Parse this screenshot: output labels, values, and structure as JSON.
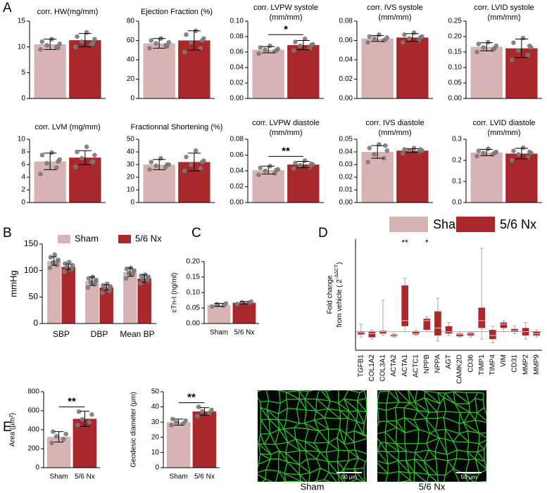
{
  "panel_labels": [
    "A",
    "B",
    "C",
    "D",
    "E"
  ],
  "legend": [
    {
      "name": "Sham",
      "color": "#d7b3b3"
    },
    {
      "name": "5/6 Nx",
      "color": "#a8282b"
    }
  ],
  "images": [
    {
      "caption": "Sham",
      "scale_bar": "50 µm"
    },
    {
      "caption": "5/6 Nx",
      "scale_bar": "50 µm"
    }
  ],
  "chart_data": [
    {
      "type": "bar",
      "title": [
        "corr. HW(mg/mm)"
      ],
      "values": [
        10.5,
        11.3
      ],
      "errors": [
        1.0,
        1.3
      ],
      "points": [
        [
          9.5,
          10,
          10.3,
          10.6,
          11,
          11.5,
          9.8
        ],
        [
          10,
          10.5,
          11,
          11.5,
          12,
          12.8,
          10.8
        ]
      ],
      "ylim": [
        0,
        15
      ],
      "yticks": [
        0,
        5,
        10,
        15
      ]
    },
    {
      "type": "bar",
      "title": [
        "Ejection Fraction (%)"
      ],
      "values": [
        57,
        60
      ],
      "errors": [
        5,
        10
      ],
      "points": [
        [
          52,
          55,
          57,
          58,
          60,
          62,
          54
        ],
        [
          48,
          52,
          58,
          62,
          66,
          70,
          60
        ]
      ],
      "ylim": [
        0,
        80
      ],
      "yticks": [
        0,
        20,
        40,
        60,
        80
      ]
    },
    {
      "type": "bar",
      "title": [
        "corr. LVPW systole",
        "(mm/mm)"
      ],
      "values": [
        0.063,
        0.069
      ],
      "errors": [
        0.004,
        0.006
      ],
      "points": [
        [
          0.058,
          0.061,
          0.063,
          0.064,
          0.066,
          0.068,
          0.062
        ],
        [
          0.062,
          0.065,
          0.068,
          0.07,
          0.073,
          0.077,
          0.069
        ]
      ],
      "annotation": "*",
      "ylim": [
        0,
        0.1
      ],
      "yticks": [
        {
          "value": 0,
          "label": "0.00"
        },
        {
          "value": 0.02,
          "label": "0.02"
        },
        {
          "value": 0.04,
          "label": "0.04"
        },
        {
          "value": 0.06,
          "label": "0.06"
        },
        {
          "value": 0.08,
          "label": "0.08"
        },
        {
          "value": 0.1,
          "label": "0.10"
        }
      ]
    },
    {
      "type": "bar",
      "title": [
        "corr. IVS systole",
        "(mm/mm)"
      ],
      "values": [
        0.062,
        0.063
      ],
      "errors": [
        0.003,
        0.004
      ],
      "points": [
        [
          0.058,
          0.06,
          0.062,
          0.063,
          0.064,
          0.066,
          0.061
        ],
        [
          0.058,
          0.06,
          0.062,
          0.064,
          0.066,
          0.068,
          0.063
        ]
      ],
      "ylim": [
        0,
        0.08
      ],
      "yticks": [
        {
          "value": 0,
          "label": "0.00"
        },
        {
          "value": 0.02,
          "label": "0.02"
        },
        {
          "value": 0.04,
          "label": "0.04"
        },
        {
          "value": 0.06,
          "label": "0.06"
        },
        {
          "value": 0.08,
          "label": "0.08"
        }
      ]
    },
    {
      "type": "bar",
      "title": [
        "corr. LVID systole",
        "(mm/mm)"
      ],
      "values": [
        0.167,
        0.162
      ],
      "errors": [
        0.013,
        0.03
      ],
      "points": [
        [
          0.15,
          0.158,
          0.165,
          0.17,
          0.176,
          0.182,
          0.162
        ],
        [
          0.125,
          0.14,
          0.155,
          0.165,
          0.18,
          0.195,
          0.17
        ]
      ],
      "ylim": [
        0,
        0.25
      ],
      "yticks": [
        {
          "value": 0,
          "label": "0.00"
        },
        {
          "value": 0.05,
          "label": "0.05"
        },
        {
          "value": 0.1,
          "label": "0.10"
        },
        {
          "value": 0.15,
          "label": "0.15"
        },
        {
          "value": 0.2,
          "label": "0.20"
        },
        {
          "value": 0.25,
          "label": "0.25"
        }
      ]
    },
    {
      "type": "bar",
      "title": [
        "corr. LVM (mg/mm)"
      ],
      "values": [
        6.5,
        7.1
      ],
      "errors": [
        1.3,
        1.1
      ],
      "points": [
        [
          4.5,
          5.5,
          6.2,
          6.8,
          7.5,
          7.9,
          6.5
        ],
        [
          5.6,
          6.3,
          7.0,
          7.5,
          8.0,
          8.8,
          6.5
        ]
      ],
      "ylim": [
        0,
        10
      ],
      "yticks": [
        0,
        2,
        4,
        6,
        8,
        10
      ]
    },
    {
      "type": "bar",
      "title": [
        "Fractionnal Shortening (%)"
      ],
      "values": [
        30,
        32
      ],
      "errors": [
        4,
        7
      ],
      "points": [
        [
          26,
          28,
          29,
          30,
          32,
          35,
          30
        ],
        [
          25,
          27,
          30,
          33,
          36,
          41,
          32
        ]
      ],
      "ylim": [
        0,
        50
      ],
      "yticks": [
        0,
        10,
        20,
        30,
        40,
        50
      ]
    },
    {
      "type": "bar",
      "title": [
        "corr. LVPW diastole",
        "(mm/mm)"
      ],
      "values": [
        0.041,
        0.048
      ],
      "errors": [
        0.005,
        0.004
      ],
      "points": [
        [
          0.035,
          0.037,
          0.04,
          0.042,
          0.044,
          0.046,
          0.041
        ],
        [
          0.043,
          0.045,
          0.047,
          0.048,
          0.05,
          0.053,
          0.049
        ]
      ],
      "annotation": "**",
      "ylim": [
        0,
        0.08
      ],
      "yticks": [
        {
          "value": 0,
          "label": "0.00"
        },
        {
          "value": 0.02,
          "label": "0.02"
        },
        {
          "value": 0.04,
          "label": "0.04"
        },
        {
          "value": 0.06,
          "label": "0.06"
        },
        {
          "value": 0.08,
          "label": "0.08"
        }
      ]
    },
    {
      "type": "bar",
      "title": [
        "corr. IVS diastole",
        "(mm/mm)"
      ],
      "values": [
        0.04,
        0.041
      ],
      "errors": [
        0.005,
        0.0015
      ],
      "points": [
        [
          0.032,
          0.035,
          0.038,
          0.041,
          0.043,
          0.046,
          0.045
        ],
        [
          0.039,
          0.04,
          0.041,
          0.041,
          0.042,
          0.043,
          0.042
        ]
      ],
      "ylim": [
        0,
        0.05
      ],
      "yticks": [
        {
          "value": 0,
          "label": "0.00"
        },
        {
          "value": 0.01,
          "label": "0.01"
        },
        {
          "value": 0.02,
          "label": "0.02"
        },
        {
          "value": 0.03,
          "label": "0.03"
        },
        {
          "value": 0.04,
          "label": "0.04"
        },
        {
          "value": 0.05,
          "label": "0.05"
        }
      ]
    },
    {
      "type": "bar",
      "title": [
        "corr. LVID diastole",
        "(mm/mm)"
      ],
      "values": [
        0.237,
        0.232
      ],
      "errors": [
        0.015,
        0.025
      ],
      "points": [
        [
          0.22,
          0.228,
          0.235,
          0.24,
          0.245,
          0.255,
          0.235
        ],
        [
          0.2,
          0.215,
          0.228,
          0.235,
          0.245,
          0.26,
          0.24
        ]
      ],
      "ylim": [
        0,
        0.3
      ],
      "yticks": [
        {
          "value": 0,
          "label": "0.0"
        },
        {
          "value": 0.1,
          "label": "0.1"
        },
        {
          "value": 0.2,
          "label": "0.2"
        },
        {
          "value": 0.3,
          "label": "0.3"
        }
      ]
    },
    {
      "type": "bar",
      "ylabel": "mmHg",
      "categories": [
        "SBP",
        "DBP",
        "Mean BP"
      ],
      "series": [
        {
          "name": "Sham",
          "color": "#d7b3b3",
          "values": [
            118,
            80,
            97
          ],
          "errors": [
            8,
            8,
            8
          ],
          "points": [
            [
              105,
              110,
              115,
              120,
              125,
              130,
              118
            ],
            [
              68,
              74,
              78,
              82,
              85,
              88,
              80
            ],
            [
              85,
              92,
              95,
              100,
              103,
              105,
              98
            ]
          ]
        },
        {
          "name": "5/6 Nx",
          "color": "#a8282b",
          "values": [
            107,
            68,
            85
          ],
          "errors": [
            5,
            5,
            7
          ],
          "points": [
            [
              98,
              102,
              106,
              110,
              113,
              116,
              105
            ],
            [
              58,
              62,
              66,
              70,
              72,
              75,
              68
            ],
            [
              76,
              80,
              84,
              88,
              90,
              92,
              86
            ]
          ]
        }
      ],
      "ylim": [
        0,
        150
      ],
      "yticks": [
        0,
        50,
        100,
        150
      ]
    },
    {
      "type": "bar",
      "ylabel": "cTn-I (ng/ml)",
      "categories": [
        "Sham",
        "5/6 Nx"
      ],
      "values": [
        0.06,
        0.067
      ],
      "errors": [
        0.005,
        0.004
      ],
      "points": [
        [
          0.055,
          0.058,
          0.062,
          0.065
        ],
        [
          0.063,
          0.066,
          0.068,
          0.071
        ]
      ],
      "ylim": [
        0,
        0.2
      ],
      "yticks": [
        {
          "value": 0,
          "label": "0.00"
        },
        {
          "value": 0.05,
          "label": "0.05"
        },
        {
          "value": 0.1,
          "label": "0.10"
        },
        {
          "value": 0.15,
          "label": "0.15"
        },
        {
          "value": 0.2,
          "label": "0.20"
        }
      ]
    },
    {
      "type": "box",
      "ylabel": [
        "Fold change",
        [
          "from vehicle ( 2",
          "-ΔΔCT",
          ")"
        ]
      ],
      "color": "#a8282b",
      "refline": 1,
      "categories": [
        "TGFB1",
        "COL1A2",
        "COL3A1",
        "ACTA2",
        "ACTA1",
        "ACTC1",
        "NPPB",
        "NPPA",
        "AGT",
        "CAMK2D",
        "CD36",
        "TIMP1",
        "TIMP4",
        "VIM",
        "CD31",
        "MMP2",
        "MMP9"
      ],
      "boxes": [
        [
          0.7,
          0.85,
          0.95,
          1.0,
          1.4
        ],
        [
          0.6,
          0.7,
          0.9,
          1.0,
          1.1
        ],
        [
          0.8,
          0.9,
          1.0,
          1.05,
          2.7
        ],
        [
          0.7,
          0.75,
          0.8,
          0.85,
          0.9
        ],
        [
          1.0,
          1.3,
          1.6,
          3.5,
          3.9
        ],
        [
          0.8,
          0.85,
          0.9,
          1.0,
          1.1
        ],
        [
          1.0,
          1.1,
          1.6,
          1.7,
          1.8
        ],
        [
          0.5,
          0.8,
          1.2,
          2.1,
          2.8
        ],
        [
          0.8,
          0.9,
          1.0,
          1.3,
          1.5
        ],
        [
          0.7,
          0.75,
          0.85,
          0.9,
          1.0
        ],
        [
          0.7,
          0.8,
          0.9,
          0.95,
          1.0
        ],
        [
          0.6,
          1.2,
          1.6,
          2.3,
          5.5
        ],
        [
          0.4,
          0.6,
          0.8,
          1.1,
          1.3
        ],
        [
          1.0,
          1.2,
          1.4,
          1.5,
          1.6
        ],
        [
          0.9,
          1.0,
          1.05,
          1.15,
          1.3
        ],
        [
          0.6,
          0.8,
          1.0,
          1.2,
          1.5
        ],
        [
          0.7,
          0.8,
          0.9,
          1.0,
          1.1
        ]
      ],
      "annotations": [
        {
          "category": "ACTA1",
          "text": "**"
        },
        {
          "category": "NPPB",
          "text": "*"
        }
      ],
      "ylim": [
        0,
        6
      ]
    },
    {
      "type": "bar",
      "ylabel": "Area (µm²)",
      "categories": [
        "Sham",
        "5/6 Nx"
      ],
      "values": [
        325,
        515
      ],
      "errors": [
        55,
        80
      ],
      "points": [
        [
          260,
          300,
          330,
          355,
          380
        ],
        [
          450,
          480,
          510,
          560,
          590
        ]
      ],
      "annotation": "**",
      "ylim": [
        0,
        800
      ],
      "yticks": [
        0,
        200,
        400,
        600,
        800
      ]
    },
    {
      "type": "bar",
      "ylabel": "Geodesic diameter (µm)",
      "categories": [
        "Sham",
        "5/6 Nx"
      ],
      "values": [
        30,
        37
      ],
      "errors": [
        2,
        2.5
      ],
      "points": [
        [
          28,
          29,
          30,
          31,
          32
        ],
        [
          34,
          36,
          37,
          38,
          40
        ]
      ],
      "annotation": "**",
      "ylim": [
        0,
        50
      ],
      "yticks": [
        0,
        10,
        20,
        30,
        40,
        50
      ]
    }
  ]
}
